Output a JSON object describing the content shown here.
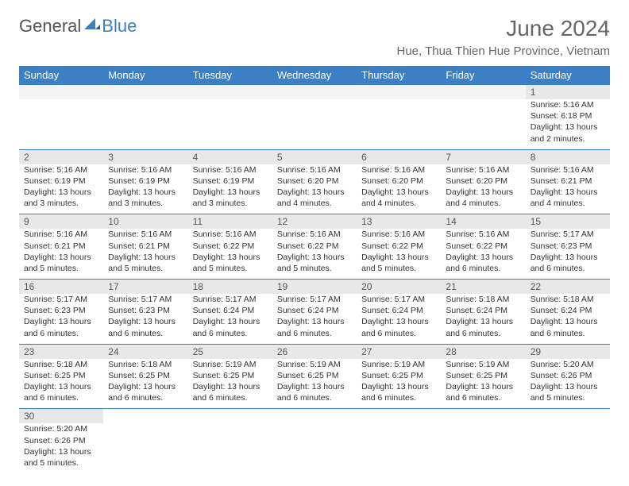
{
  "logo": {
    "text1": "General",
    "text2": "Blue"
  },
  "title": "June 2024",
  "location": "Hue, Thua Thien Hue Province, Vietnam",
  "weekdays": [
    "Sunday",
    "Monday",
    "Tuesday",
    "Wednesday",
    "Thursday",
    "Friday",
    "Saturday"
  ],
  "colors": {
    "header_bg": "#3b7fc4",
    "day_num_bg": "#e8e8e8",
    "border": "#3b7fc4",
    "text": "#333333"
  },
  "weeks": [
    [
      null,
      null,
      null,
      null,
      null,
      null,
      {
        "n": "1",
        "sr": "5:16 AM",
        "ss": "6:18 PM",
        "dl": "13 hours and 2 minutes."
      }
    ],
    [
      {
        "n": "2",
        "sr": "5:16 AM",
        "ss": "6:19 PM",
        "dl": "13 hours and 3 minutes."
      },
      {
        "n": "3",
        "sr": "5:16 AM",
        "ss": "6:19 PM",
        "dl": "13 hours and 3 minutes."
      },
      {
        "n": "4",
        "sr": "5:16 AM",
        "ss": "6:19 PM",
        "dl": "13 hours and 3 minutes."
      },
      {
        "n": "5",
        "sr": "5:16 AM",
        "ss": "6:20 PM",
        "dl": "13 hours and 4 minutes."
      },
      {
        "n": "6",
        "sr": "5:16 AM",
        "ss": "6:20 PM",
        "dl": "13 hours and 4 minutes."
      },
      {
        "n": "7",
        "sr": "5:16 AM",
        "ss": "6:20 PM",
        "dl": "13 hours and 4 minutes."
      },
      {
        "n": "8",
        "sr": "5:16 AM",
        "ss": "6:21 PM",
        "dl": "13 hours and 4 minutes."
      }
    ],
    [
      {
        "n": "9",
        "sr": "5:16 AM",
        "ss": "6:21 PM",
        "dl": "13 hours and 5 minutes."
      },
      {
        "n": "10",
        "sr": "5:16 AM",
        "ss": "6:21 PM",
        "dl": "13 hours and 5 minutes."
      },
      {
        "n": "11",
        "sr": "5:16 AM",
        "ss": "6:22 PM",
        "dl": "13 hours and 5 minutes."
      },
      {
        "n": "12",
        "sr": "5:16 AM",
        "ss": "6:22 PM",
        "dl": "13 hours and 5 minutes."
      },
      {
        "n": "13",
        "sr": "5:16 AM",
        "ss": "6:22 PM",
        "dl": "13 hours and 5 minutes."
      },
      {
        "n": "14",
        "sr": "5:16 AM",
        "ss": "6:22 PM",
        "dl": "13 hours and 6 minutes."
      },
      {
        "n": "15",
        "sr": "5:17 AM",
        "ss": "6:23 PM",
        "dl": "13 hours and 6 minutes."
      }
    ],
    [
      {
        "n": "16",
        "sr": "5:17 AM",
        "ss": "6:23 PM",
        "dl": "13 hours and 6 minutes."
      },
      {
        "n": "17",
        "sr": "5:17 AM",
        "ss": "6:23 PM",
        "dl": "13 hours and 6 minutes."
      },
      {
        "n": "18",
        "sr": "5:17 AM",
        "ss": "6:24 PM",
        "dl": "13 hours and 6 minutes."
      },
      {
        "n": "19",
        "sr": "5:17 AM",
        "ss": "6:24 PM",
        "dl": "13 hours and 6 minutes."
      },
      {
        "n": "20",
        "sr": "5:17 AM",
        "ss": "6:24 PM",
        "dl": "13 hours and 6 minutes."
      },
      {
        "n": "21",
        "sr": "5:18 AM",
        "ss": "6:24 PM",
        "dl": "13 hours and 6 minutes."
      },
      {
        "n": "22",
        "sr": "5:18 AM",
        "ss": "6:24 PM",
        "dl": "13 hours and 6 minutes."
      }
    ],
    [
      {
        "n": "23",
        "sr": "5:18 AM",
        "ss": "6:25 PM",
        "dl": "13 hours and 6 minutes."
      },
      {
        "n": "24",
        "sr": "5:18 AM",
        "ss": "6:25 PM",
        "dl": "13 hours and 6 minutes."
      },
      {
        "n": "25",
        "sr": "5:19 AM",
        "ss": "6:25 PM",
        "dl": "13 hours and 6 minutes."
      },
      {
        "n": "26",
        "sr": "5:19 AM",
        "ss": "6:25 PM",
        "dl": "13 hours and 6 minutes."
      },
      {
        "n": "27",
        "sr": "5:19 AM",
        "ss": "6:25 PM",
        "dl": "13 hours and 6 minutes."
      },
      {
        "n": "28",
        "sr": "5:19 AM",
        "ss": "6:25 PM",
        "dl": "13 hours and 6 minutes."
      },
      {
        "n": "29",
        "sr": "5:20 AM",
        "ss": "6:26 PM",
        "dl": "13 hours and 5 minutes."
      }
    ],
    [
      {
        "n": "30",
        "sr": "5:20 AM",
        "ss": "6:26 PM",
        "dl": "13 hours and 5 minutes."
      },
      null,
      null,
      null,
      null,
      null,
      null
    ]
  ],
  "labels": {
    "sunrise": "Sunrise: ",
    "sunset": "Sunset: ",
    "daylight": "Daylight: "
  }
}
